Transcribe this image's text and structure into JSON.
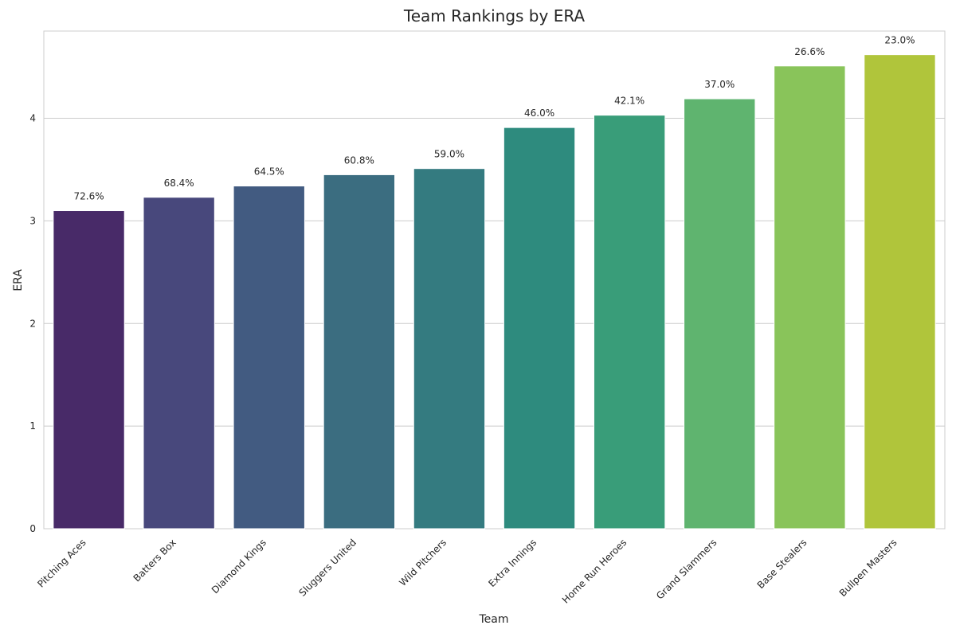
{
  "chart_data": {
    "type": "bar",
    "title": "Team Rankings by ERA",
    "xlabel": "Team",
    "ylabel": "ERA",
    "ylim": [
      0,
      4.85
    ],
    "yticks": [
      0,
      1,
      2,
      3,
      4
    ],
    "grid": "horizontal",
    "categories": [
      "Pitching Aces",
      "Batters Box",
      "Diamond Kings",
      "Sluggers United",
      "Wild Pitchers",
      "Extra Innings",
      "Home Run Heroes",
      "Grand Slammers",
      "Base Stealers",
      "Bullpen Masters"
    ],
    "values": [
      3.1,
      3.23,
      3.34,
      3.45,
      3.51,
      3.91,
      4.03,
      4.19,
      4.51,
      4.62
    ],
    "bar_labels": [
      "72.6%",
      "68.4%",
      "64.5%",
      "60.8%",
      "59.0%",
      "46.0%",
      "42.1%",
      "37.0%",
      "26.6%",
      "23.0%"
    ],
    "colors": [
      "#482a68",
      "#48487c",
      "#425b81",
      "#3b6d80",
      "#347b80",
      "#2e8b7e",
      "#399d79",
      "#5fb46f",
      "#89c45a",
      "#b0c53b"
    ]
  }
}
